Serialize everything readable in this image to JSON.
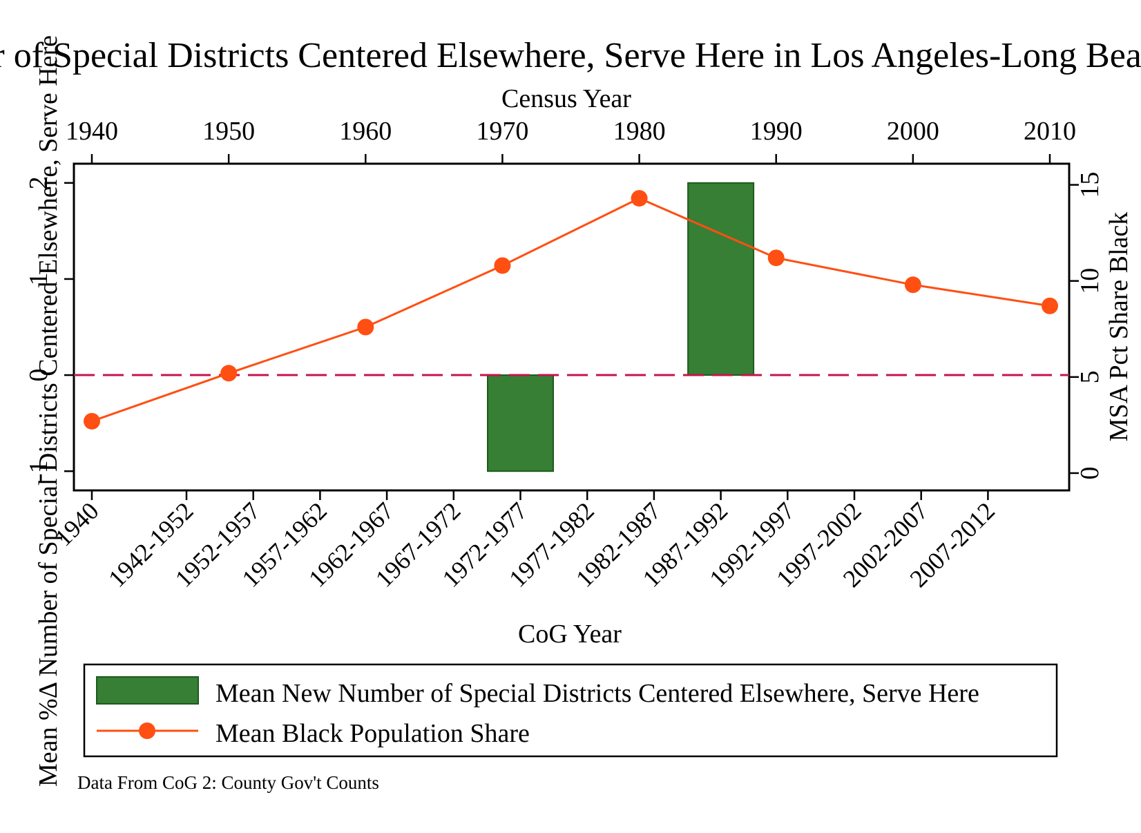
{
  "chart_data": {
    "type": "bar+line",
    "title": "Mean %Δ Number of Special Districts Centered Elsewhere, Serve Here in Los Angeles-Long Beach",
    "top_axis": {
      "label": "Census Year",
      "ticks": [
        "1940",
        "1950",
        "1960",
        "1970",
        "1980",
        "1990",
        "2000",
        "2010"
      ],
      "range": [
        1940,
        2010
      ]
    },
    "bottom_axis": {
      "label": "CoG Year",
      "categories": [
        "1940",
        "1942-1952",
        "1952-1957",
        "1957-1962",
        "1962-1967",
        "1967-1972",
        "1972-1977",
        "1977-1982",
        "1982-1987",
        "1987-1992",
        "1992-1997",
        "1997-2002",
        "2002-2007",
        "2007-2012"
      ]
    },
    "left_axis": {
      "label": "Mean %Δ Number of Special Districts Centered Elsewhere, Serve Here",
      "ticks": [
        "-1",
        "0",
        "1",
        "2"
      ],
      "range": [
        -1.2,
        2.2
      ]
    },
    "right_axis": {
      "label": "MSA Pct Share Black",
      "ticks": [
        "0",
        "5",
        "10",
        "15"
      ],
      "range": [
        -0.9,
        16.1
      ]
    },
    "bars": {
      "name": "Mean New Number of Special Districts Centered Elsewhere, Serve Here",
      "color": "#367f34",
      "points": [
        {
          "category": "1972-1977",
          "value": -1.0
        },
        {
          "category": "1987-1992",
          "value": 2.0
        }
      ]
    },
    "line": {
      "name": "Mean Black Population Share",
      "color": "#ff4f12",
      "x": [
        1940,
        1950,
        1960,
        1970,
        1980,
        1990,
        2000,
        2010
      ],
      "y": [
        2.7,
        5.2,
        7.6,
        10.8,
        14.3,
        11.2,
        9.8,
        8.7
      ]
    },
    "reference_line": {
      "value": 0,
      "axis": "left",
      "style": "dashed",
      "color": "#c4144b"
    },
    "legend": {
      "position": "bottom",
      "entries": [
        "Mean New Number of Special Districts Centered Elsewhere, Serve Here",
        "Mean Black Population Share"
      ]
    },
    "note": "Data From CoG 2: County Gov't Counts"
  }
}
